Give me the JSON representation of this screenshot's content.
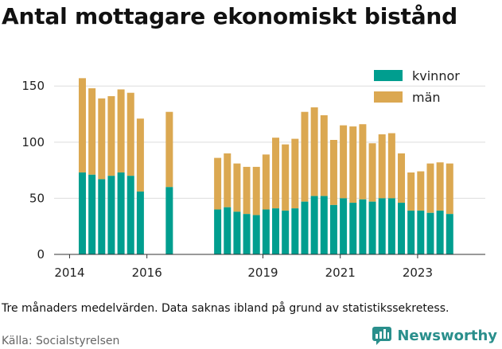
{
  "title": "Antal mottagare ekonomiskt bistånd",
  "note": "Tre månaders medelvärden. Data saknas ibland på grund av statistikssekretess.",
  "source": "Källa: Socialstyrelsen",
  "brand": "Newsworthy",
  "brand_icon": "newsworthy-logo-icon",
  "colors": {
    "kvinnor": "#009e8f",
    "man": "#dba851",
    "grid": "#dddddd",
    "axis": "#333333"
  },
  "chart_data": {
    "type": "bar",
    "stacked": true,
    "title": "Antal mottagare ekonomiskt bistånd",
    "xlabel": "",
    "ylabel": "",
    "ylim": [
      0,
      170
    ],
    "yticks": [
      0,
      50,
      100,
      150
    ],
    "xlim": [
      2013.6,
      2024.75
    ],
    "xticks": [
      2014,
      2016,
      2019,
      2021,
      2023
    ],
    "grid": true,
    "legend": "top-right",
    "x": [
      2014.33,
      2014.58,
      2014.83,
      2015.08,
      2015.33,
      2015.58,
      2015.83,
      2016.58,
      2017.83,
      2018.08,
      2018.33,
      2018.58,
      2018.83,
      2019.08,
      2019.33,
      2019.58,
      2019.83,
      2020.08,
      2020.33,
      2020.58,
      2020.83,
      2021.08,
      2021.33,
      2021.58,
      2021.83,
      2022.08,
      2022.33,
      2022.58,
      2022.83,
      2023.08,
      2023.33,
      2023.58,
      2023.83
    ],
    "series": [
      {
        "name": "kvinnor",
        "values": [
          73,
          71,
          67,
          70,
          73,
          70,
          56,
          60,
          40,
          42,
          38,
          36,
          35,
          40,
          41,
          39,
          41,
          47,
          52,
          52,
          44,
          50,
          46,
          49,
          47,
          50,
          50,
          46,
          39,
          39,
          37,
          39,
          36
        ]
      },
      {
        "name": "män",
        "values": [
          84,
          77,
          72,
          71,
          74,
          74,
          65,
          67,
          46,
          48,
          43,
          42,
          43,
          49,
          63,
          59,
          62,
          80,
          79,
          72,
          58,
          65,
          68,
          67,
          52,
          57,
          58,
          44,
          34,
          35,
          44,
          43,
          45
        ]
      }
    ]
  }
}
